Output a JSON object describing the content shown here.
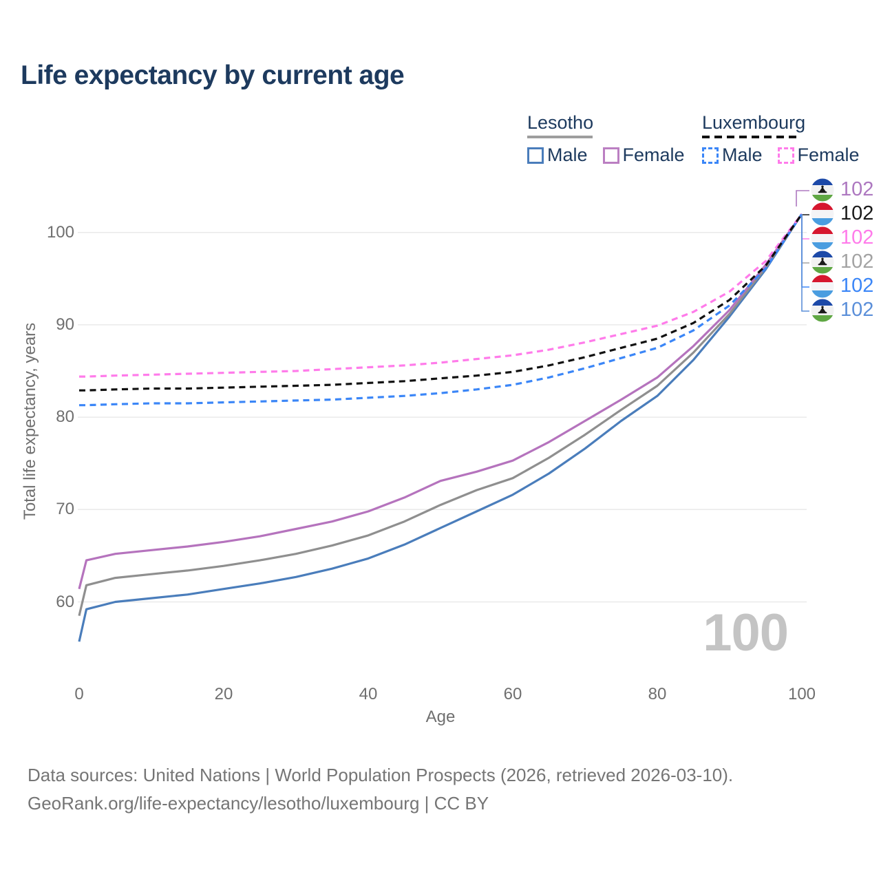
{
  "header": {
    "title": "Life expectancy by current age"
  },
  "legend": {
    "groups": [
      {
        "name": "Lesotho",
        "line_style": "solid",
        "underline_color": "#9e9e9e",
        "items": [
          {
            "label": "Male",
            "color": "#4a7dbb",
            "dashed": false
          },
          {
            "label": "Female",
            "color": "#bb7fc2",
            "dashed": false
          }
        ]
      },
      {
        "name": "Luxembourg",
        "line_style": "dashed",
        "underline_color": "#111111",
        "items": [
          {
            "label": "Male",
            "color": "#3b86f7",
            "dashed": true
          },
          {
            "label": "Female",
            "color": "#ff7bea",
            "dashed": true
          }
        ]
      }
    ]
  },
  "chart_data": {
    "type": "line",
    "title": "Life expectancy by current age",
    "xlabel": "Age",
    "ylabel": "Total life expectancy, years",
    "xlim": [
      0,
      100
    ],
    "ylim": [
      55,
      105
    ],
    "xticks": [
      0,
      20,
      40,
      60,
      80,
      100
    ],
    "yticks": [
      60,
      70,
      80,
      90,
      100
    ],
    "grid": "horizontal",
    "gridline_color": "#e9e9e9",
    "x": [
      0,
      1,
      5,
      10,
      15,
      20,
      25,
      30,
      35,
      40,
      45,
      50,
      55,
      60,
      65,
      70,
      75,
      80,
      85,
      90,
      95,
      100
    ],
    "series": [
      {
        "name": "Lesotho Male",
        "country": "Lesotho",
        "sex": "Male",
        "color": "#4a7dbb",
        "dashed": false,
        "values": [
          55.7,
          59.2,
          60.0,
          60.4,
          60.8,
          61.4,
          62.0,
          62.7,
          63.6,
          64.7,
          66.2,
          68.0,
          69.8,
          71.6,
          73.9,
          76.6,
          79.6,
          82.3,
          86.2,
          90.9,
          96.0,
          102
        ]
      },
      {
        "name": "Lesotho Total",
        "country": "Lesotho",
        "sex": "Both",
        "color": "#8f8f8f",
        "dashed": false,
        "values": [
          58.5,
          61.8,
          62.6,
          63.0,
          63.4,
          63.9,
          64.5,
          65.2,
          66.1,
          67.2,
          68.7,
          70.5,
          72.1,
          73.4,
          75.6,
          78.1,
          80.8,
          83.4,
          87.0,
          91.2,
          96.2,
          102
        ]
      },
      {
        "name": "Lesotho Female",
        "country": "Lesotho",
        "sex": "Female",
        "color": "#b573bd",
        "dashed": false,
        "values": [
          61.4,
          64.5,
          65.2,
          65.6,
          66.0,
          66.5,
          67.1,
          67.9,
          68.7,
          69.8,
          71.3,
          73.1,
          74.1,
          75.3,
          77.3,
          79.6,
          81.9,
          84.3,
          87.7,
          91.6,
          96.5,
          102
        ]
      },
      {
        "name": "Luxembourg Male",
        "country": "Luxembourg",
        "sex": "Male",
        "color": "#3b86f7",
        "dashed": true,
        "values": [
          81.3,
          81.3,
          81.4,
          81.5,
          81.5,
          81.6,
          81.7,
          81.8,
          81.9,
          82.1,
          82.3,
          82.6,
          83.0,
          83.5,
          84.3,
          85.3,
          86.4,
          87.5,
          89.4,
          92.1,
          96.1,
          102
        ]
      },
      {
        "name": "Luxembourg Female",
        "country": "Luxembourg",
        "sex": "Female",
        "color": "#ff7bea",
        "dashed": true,
        "values": [
          84.4,
          84.4,
          84.5,
          84.6,
          84.7,
          84.8,
          84.9,
          85.0,
          85.2,
          85.4,
          85.6,
          85.9,
          86.3,
          86.7,
          87.3,
          88.1,
          89.0,
          89.9,
          91.4,
          93.6,
          96.9,
          102
        ]
      },
      {
        "name": "Luxembourg Total",
        "country": "Luxembourg",
        "sex": "Both",
        "color": "#111111",
        "dashed": true,
        "values": [
          82.9,
          82.9,
          83.0,
          83.1,
          83.1,
          83.2,
          83.3,
          83.4,
          83.5,
          83.7,
          83.9,
          84.2,
          84.5,
          84.9,
          85.6,
          86.5,
          87.5,
          88.5,
          90.2,
          92.7,
          96.4,
          102
        ]
      }
    ]
  },
  "end_labels": [
    {
      "flag": "lesotho-flag",
      "series": "Lesotho Female",
      "value": "102",
      "color": "#ad78c0"
    },
    {
      "flag": "luxembourg-flag",
      "series": "Luxembourg Total",
      "value": "102",
      "color": "#1a1a1a"
    },
    {
      "flag": "luxembourg-flag",
      "series": "Luxembourg Female",
      "value": "102",
      "color": "#ff7bea"
    },
    {
      "flag": "lesotho-flag",
      "series": "Lesotho Total",
      "value": "102",
      "color": "#a3a3a3"
    },
    {
      "flag": "luxembourg-flag",
      "series": "Luxembourg Male",
      "value": "102",
      "color": "#3b86f7"
    },
    {
      "flag": "lesotho-flag",
      "series": "Lesotho Male",
      "value": "102",
      "color": "#5b8fd9"
    }
  ],
  "flags": {
    "lesotho-flag": {
      "stripes": [
        "#1c49a8",
        "#f2f2f2",
        "#5fa743"
      ],
      "emblem": "mokorotlo-hat"
    },
    "luxembourg-flag": {
      "stripes": [
        "#d6172f",
        "#f4f4f6",
        "#4a9de0"
      ],
      "emblem": null
    }
  },
  "watermark": "100",
  "footer": {
    "line1": "Data sources: United Nations | World Population Prospects (2026, retrieved 2026-03-10).",
    "line2": "GeoRank.org/life-expectancy/lesotho/luxembourg | CC BY"
  }
}
